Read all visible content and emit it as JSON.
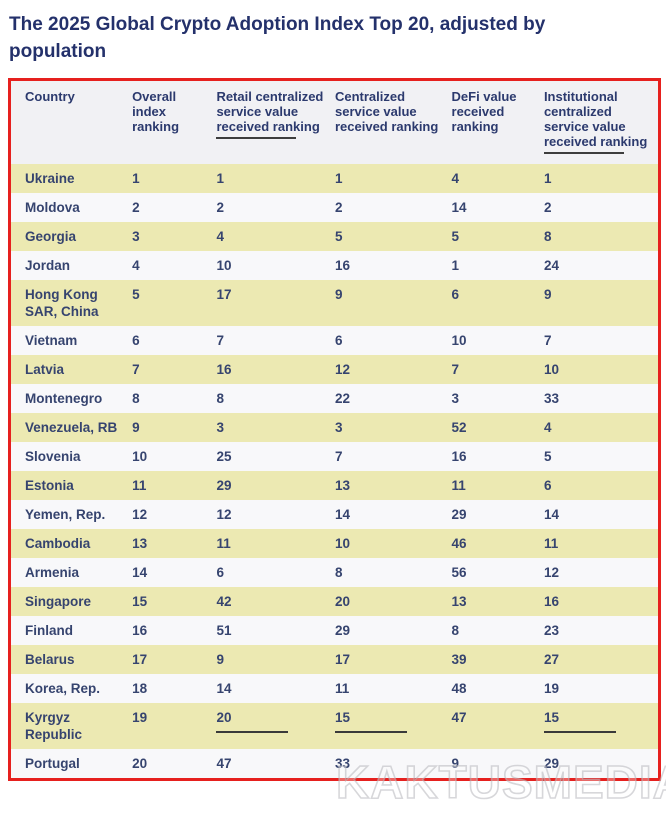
{
  "page_title": "The 2025 Global Crypto Adoption Index Top 20, adjusted by population",
  "watermark": "KAKTUSMEDIA",
  "colors": {
    "title_text": "#24316b",
    "cell_text": "#36446f",
    "row_highlight": "#ece9b2",
    "row_plain": "#f8f8fa",
    "header_background": "#f1f1f4",
    "table_border_red": "#e6201e",
    "annotation_underline": "#3a3a3a"
  },
  "chart_data": {
    "type": "table",
    "title": "The 2025 Global Crypto Adoption Index Top 20, adjusted by population",
    "columns": [
      "Country",
      "Overall index ranking",
      "Retail centralized service value received ranking",
      "Centralized service value received ranking",
      "DeFi value received ranking",
      "Institutional centralized service value received ranking"
    ],
    "header_underlined_columns": [
      2,
      5
    ],
    "rows": [
      {
        "country": "Ukraine",
        "values": [
          1,
          1,
          1,
          4,
          1
        ],
        "highlighted": true
      },
      {
        "country": "Moldova",
        "values": [
          2,
          2,
          2,
          14,
          2
        ],
        "highlighted": false
      },
      {
        "country": "Georgia",
        "values": [
          3,
          4,
          5,
          5,
          8
        ],
        "highlighted": true
      },
      {
        "country": "Jordan",
        "values": [
          4,
          10,
          16,
          1,
          24
        ],
        "highlighted": false
      },
      {
        "country": "Hong Kong SAR, China",
        "values": [
          5,
          17,
          9,
          6,
          9
        ],
        "highlighted": true
      },
      {
        "country": "Vietnam",
        "values": [
          6,
          7,
          6,
          10,
          7
        ],
        "highlighted": false
      },
      {
        "country": "Latvia",
        "values": [
          7,
          16,
          12,
          7,
          10
        ],
        "highlighted": true
      },
      {
        "country": "Montenegro",
        "values": [
          8,
          8,
          22,
          3,
          33
        ],
        "highlighted": false
      },
      {
        "country": "Venezuela, RB",
        "values": [
          9,
          3,
          3,
          52,
          4
        ],
        "highlighted": true
      },
      {
        "country": "Slovenia",
        "values": [
          10,
          25,
          7,
          16,
          5
        ],
        "highlighted": false
      },
      {
        "country": "Estonia",
        "values": [
          11,
          29,
          13,
          11,
          6
        ],
        "highlighted": true
      },
      {
        "country": "Yemen, Rep.",
        "values": [
          12,
          12,
          14,
          29,
          14
        ],
        "highlighted": false
      },
      {
        "country": "Cambodia",
        "values": [
          13,
          11,
          10,
          46,
          11
        ],
        "highlighted": true
      },
      {
        "country": "Armenia",
        "values": [
          14,
          6,
          8,
          56,
          12
        ],
        "highlighted": false
      },
      {
        "country": "Singapore",
        "values": [
          15,
          42,
          20,
          13,
          16
        ],
        "highlighted": true
      },
      {
        "country": "Finland",
        "values": [
          16,
          51,
          29,
          8,
          23
        ],
        "highlighted": false
      },
      {
        "country": "Belarus",
        "values": [
          17,
          9,
          17,
          39,
          27
        ],
        "highlighted": true
      },
      {
        "country": "Korea, Rep.",
        "values": [
          18,
          14,
          11,
          48,
          19
        ],
        "highlighted": false
      },
      {
        "country": "Kyrgyz Republic",
        "values": [
          19,
          20,
          15,
          47,
          15
        ],
        "highlighted": true,
        "underlined_value_indices": [
          1,
          2,
          4
        ]
      },
      {
        "country": "Portugal",
        "values": [
          20,
          47,
          33,
          9,
          29
        ],
        "highlighted": false
      }
    ]
  }
}
